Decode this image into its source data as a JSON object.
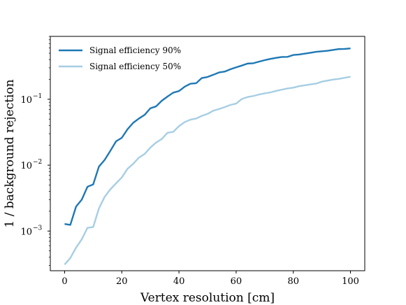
{
  "chart_data": {
    "type": "line",
    "xlabel": "Vertex resolution [cm]",
    "ylabel": "1 / background rejection",
    "xlim": [
      -5,
      105
    ],
    "ylim": [
      0.00025,
      0.9
    ],
    "yscale": "log",
    "xticks": [
      0,
      20,
      40,
      60,
      80,
      100
    ],
    "yticks": [
      {
        "value": 0.001,
        "base": "10",
        "exp": "−3"
      },
      {
        "value": 0.01,
        "base": "10",
        "exp": "−2"
      },
      {
        "value": 0.1,
        "base": "10",
        "exp": "−1"
      }
    ],
    "legend": {
      "position": "top-left"
    },
    "x": [
      0,
      2,
      4,
      6,
      8,
      10,
      12,
      14,
      16,
      18,
      20,
      22,
      24,
      26,
      28,
      30,
      32,
      34,
      36,
      38,
      40,
      42,
      44,
      46,
      48,
      50,
      52,
      54,
      56,
      58,
      60,
      62,
      64,
      66,
      68,
      70,
      72,
      74,
      76,
      78,
      80,
      82,
      84,
      86,
      88,
      90,
      92,
      94,
      96,
      98,
      100
    ],
    "series": [
      {
        "name": "Signal efficiency 90%",
        "color": "#1f78b4",
        "values": [
          0.00128,
          0.00124,
          0.00235,
          0.003,
          0.0047,
          0.0051,
          0.0095,
          0.012,
          0.0165,
          0.023,
          0.026,
          0.035,
          0.044,
          0.051,
          0.058,
          0.073,
          0.078,
          0.095,
          0.11,
          0.126,
          0.133,
          0.155,
          0.172,
          0.175,
          0.21,
          0.218,
          0.235,
          0.255,
          0.263,
          0.285,
          0.305,
          0.325,
          0.348,
          0.352,
          0.372,
          0.392,
          0.41,
          0.425,
          0.438,
          0.44,
          0.47,
          0.478,
          0.492,
          0.508,
          0.525,
          0.535,
          0.545,
          0.562,
          0.578,
          0.58,
          0.592
        ]
      },
      {
        "name": "Signal efficiency 50%",
        "color": "#a6cee3",
        "values": [
          0.00031,
          0.00039,
          0.00056,
          0.00075,
          0.00112,
          0.00115,
          0.0022,
          0.0033,
          0.0043,
          0.0053,
          0.0065,
          0.0088,
          0.0105,
          0.013,
          0.0148,
          0.0185,
          0.022,
          0.025,
          0.031,
          0.032,
          0.039,
          0.045,
          0.049,
          0.051,
          0.056,
          0.06,
          0.067,
          0.071,
          0.076,
          0.082,
          0.086,
          0.101,
          0.108,
          0.112,
          0.118,
          0.123,
          0.127,
          0.134,
          0.14,
          0.146,
          0.15,
          0.158,
          0.163,
          0.168,
          0.173,
          0.185,
          0.192,
          0.199,
          0.204,
          0.212,
          0.22
        ]
      }
    ]
  }
}
